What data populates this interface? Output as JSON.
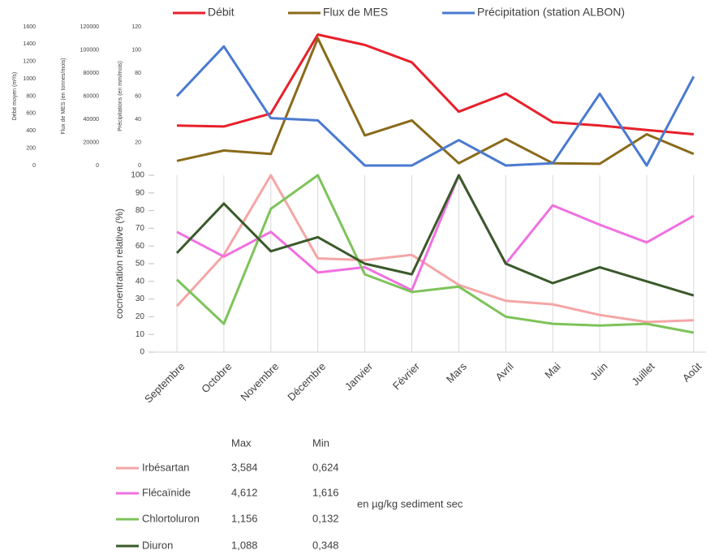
{
  "chart_data": [
    {
      "type": "line",
      "ylabel": "Débit moyen (m³/s)",
      "ylim": [
        0,
        1600
      ],
      "yticks": [
        0,
        200,
        400,
        600,
        800,
        1000,
        1200,
        1400,
        1600
      ],
      "y2label": "Flux de MES (en tonnes/mois)",
      "y2lim": [
        0,
        120000
      ],
      "y2ticks": [
        0,
        20000,
        40000,
        60000,
        80000,
        100000,
        120000
      ],
      "y3label": "Précipitations (en mm/mois)",
      "y3lim": [
        0,
        120
      ],
      "y3ticks": [
        0,
        20,
        40,
        60,
        80,
        100,
        120
      ],
      "legend": "top",
      "series": [
        {
          "name": "Débit",
          "color": "#e8202a",
          "axis": "y",
          "values": [
            460,
            450,
            600,
            1510,
            1390,
            1190,
            620,
            830,
            500,
            460,
            410,
            360
          ]
        },
        {
          "name": "Flux de MES",
          "color": "#8a6a1a",
          "axis": "y2",
          "values": [
            4000,
            13000,
            10000,
            110000,
            26000,
            39000,
            2000,
            23000,
            2000,
            1500,
            27000,
            10000
          ]
        },
        {
          "name": "Précipitation (station ALBON)",
          "color": "#4a7ad0",
          "axis": "y3",
          "values": [
            60,
            103,
            41,
            39,
            0,
            0,
            22,
            0,
            2,
            62,
            0,
            77
          ]
        }
      ]
    },
    {
      "type": "line",
      "ylabel": "cocnentration relative (%)",
      "ylim": [
        0,
        100
      ],
      "yticks": [
        0,
        10,
        20,
        30,
        40,
        50,
        60,
        70,
        80,
        90,
        100
      ],
      "grid": true,
      "categories": [
        "Septembre",
        "Octobre",
        "Novembre",
        "Décembre",
        "Janvier",
        "Février",
        "Mars",
        "Avril",
        "Mai",
        "Juin",
        "Juillet",
        "Août"
      ],
      "series": [
        {
          "name": "Irbésartan",
          "color": "#f4a6a6",
          "values": [
            26,
            55,
            100,
            53,
            52,
            55,
            38,
            29,
            27,
            21,
            17,
            18
          ]
        },
        {
          "name": "Flécaïnide",
          "color": "#f070e0",
          "values": [
            68,
            54,
            68,
            45,
            48,
            35,
            100,
            50,
            83,
            72,
            62,
            77
          ]
        },
        {
          "name": "Chlortoluron",
          "color": "#7dc35a",
          "values": [
            41,
            16,
            81,
            100,
            44,
            34,
            37,
            20,
            16,
            15,
            16,
            11
          ]
        },
        {
          "name": "Diuron",
          "color": "#3a5a2a",
          "values": [
            56,
            84,
            57,
            65,
            50,
            44,
            100,
            50,
            39,
            48,
            40,
            32
          ]
        }
      ]
    }
  ],
  "table": {
    "columns": [
      "Max",
      "Min"
    ],
    "rows": [
      [
        "3,584",
        "0,624"
      ],
      [
        "4,612",
        "1,616"
      ],
      [
        "1,156",
        "0,132"
      ],
      [
        "1,088",
        "0,348"
      ]
    ],
    "note": "en µg/kg sediment sec"
  }
}
